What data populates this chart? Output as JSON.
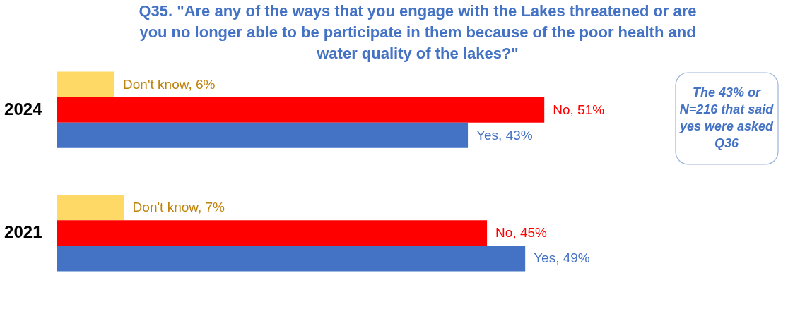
{
  "chart_data": {
    "type": "bar",
    "orientation": "horizontal",
    "title": "Q35.  \"Are any of the ways that you engage with the Lakes threatened or are\nyou no longer able to be participate in them because of the poor health and\nwater quality of the lakes?\"",
    "categories": [
      "2024",
      "2021"
    ],
    "series": [
      {
        "color": "#ffd966",
        "values": [
          6,
          7
        ],
        "value_labels": [
          "Don't know, 6%",
          "Don't know, 7%"
        ]
      },
      {
        "color": "#ff0000",
        "values": [
          51,
          45
        ],
        "value_labels": [
          "No, 51%",
          "No, 45%"
        ]
      },
      {
        "color": "#4472c4",
        "values": [
          43,
          49
        ],
        "value_labels": [
          "Yes, 43%",
          "Yes, 49%"
        ]
      }
    ],
    "annotations": [
      "The 43% or\nN=216 that said\nyes were asked\nQ36"
    ],
    "legend": false,
    "grid": false
  }
}
